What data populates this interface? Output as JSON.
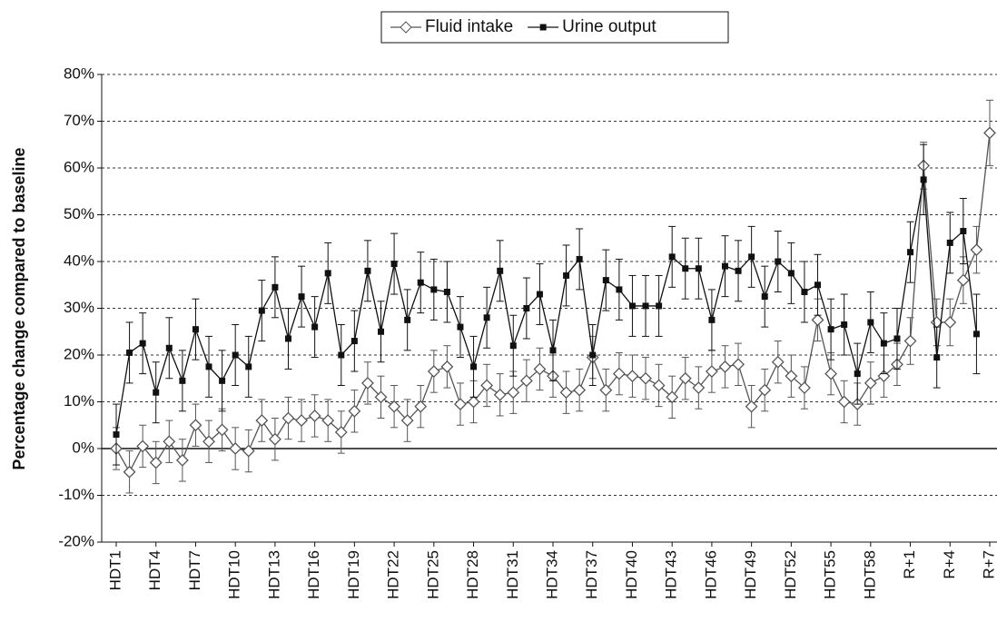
{
  "chart_data": {
    "type": "line",
    "y_label": "Percentage change compared to baseline",
    "categories": [
      "HDT1",
      null,
      null,
      "HDT4",
      null,
      null,
      "HDT7",
      null,
      null,
      "HDT10",
      null,
      null,
      "HDT13",
      null,
      null,
      "HDT16",
      null,
      null,
      "HDT19",
      null,
      null,
      "HDT22",
      null,
      null,
      "HDT25",
      null,
      null,
      "HDT28",
      null,
      null,
      "HDT31",
      null,
      null,
      "HDT34",
      null,
      null,
      "HDT37",
      null,
      null,
      "HDT40",
      null,
      null,
      "HDT43",
      null,
      null,
      "HDT46",
      null,
      null,
      "HDT49",
      null,
      null,
      "HDT52",
      null,
      null,
      "HDT55",
      null,
      null,
      "HDT58",
      null,
      null,
      "R+1",
      null,
      null,
      "R+4",
      null,
      null,
      "R+7"
    ],
    "series": [
      {
        "name": "Fluid intake",
        "color": "#555555",
        "marker": "diamond",
        "values": [
          0,
          -5,
          0.5,
          -3,
          1.5,
          -2.5,
          5,
          1.5,
          4,
          0,
          -0.5,
          6,
          2,
          6.5,
          6,
          7,
          6,
          3.5,
          8,
          14,
          11,
          9,
          6,
          9,
          16.5,
          17.5,
          9.5,
          10,
          13.5,
          11.5,
          12,
          14.5,
          17,
          15.5,
          12,
          12.5,
          19.5,
          12.5,
          16,
          15.5,
          15,
          13.5,
          11,
          15,
          13,
          16.5,
          17.5,
          18,
          9,
          12.5,
          18.5,
          15.5,
          13,
          27.5,
          16,
          10,
          9.5,
          14,
          15.5,
          18,
          23,
          60.5,
          27,
          27,
          36,
          42.5,
          67.5
        ],
        "errors": [
          4.5,
          4.5,
          4.5,
          4.5,
          4.5,
          4.5,
          4.5,
          4.5,
          4.5,
          4.5,
          4.5,
          4.5,
          4.5,
          4.5,
          4.5,
          4.5,
          4.5,
          4.5,
          4.5,
          4.5,
          4.5,
          4.5,
          4.5,
          4.5,
          4.5,
          4.5,
          4.5,
          4.5,
          4.5,
          4.5,
          4.5,
          4.5,
          4.5,
          4.5,
          4.5,
          4.5,
          4.5,
          4.5,
          4.5,
          4.5,
          4.5,
          4.5,
          4.5,
          4.5,
          4.5,
          4.5,
          4.5,
          4.5,
          4.5,
          4.5,
          4.5,
          4.5,
          4.5,
          4.5,
          4.5,
          4.5,
          4.5,
          4.5,
          4.5,
          4.5,
          5,
          5,
          5,
          5,
          5,
          5,
          7
        ]
      },
      {
        "name": "Urine output",
        "color": "#111111",
        "marker": "square",
        "values": [
          3,
          20.5,
          22.5,
          12,
          21.5,
          14.5,
          25.5,
          17.5,
          14.5,
          20,
          17.5,
          29.5,
          34.5,
          23.5,
          32.5,
          26,
          37.5,
          20,
          23,
          38,
          25,
          39.5,
          27.5,
          35.5,
          34,
          33.5,
          26,
          17.5,
          28,
          38,
          22,
          30,
          33,
          21,
          37,
          40.5,
          20,
          36,
          34,
          30.5,
          30.5,
          30.5,
          41,
          38.5,
          38.5,
          27.5,
          39,
          38,
          41,
          32.5,
          40,
          37.5,
          33.5,
          35,
          25.5,
          26.5,
          16,
          27,
          22.5,
          23.5,
          42,
          57.5,
          19.5,
          44,
          46.5,
          24.5,
          null
        ],
        "errors": [
          6.5,
          6.5,
          6.5,
          6.5,
          6.5,
          6.5,
          6.5,
          6.5,
          6.5,
          6.5,
          6.5,
          6.5,
          6.5,
          6.5,
          6.5,
          6.5,
          6.5,
          6.5,
          6.5,
          6.5,
          6.5,
          6.5,
          6.5,
          6.5,
          6.5,
          6.5,
          6.5,
          6.5,
          6.5,
          6.5,
          6.5,
          6.5,
          6.5,
          6.5,
          6.5,
          6.5,
          6.5,
          6.5,
          6.5,
          6.5,
          6.5,
          6.5,
          6.5,
          6.5,
          6.5,
          6.5,
          6.5,
          6.5,
          6.5,
          6.5,
          6.5,
          6.5,
          6.5,
          6.5,
          6.5,
          6.5,
          6.5,
          6.5,
          6.5,
          6.5,
          6.5,
          7.5,
          6.5,
          6.5,
          7,
          8.5,
          null
        ]
      }
    ],
    "ylim": [
      -20,
      80
    ],
    "yticks": [
      {
        "value": -20,
        "label": "-20%"
      },
      {
        "value": -10,
        "label": "-10%"
      },
      {
        "value": 0,
        "label": "0%"
      },
      {
        "value": 10,
        "label": "10%"
      },
      {
        "value": 20,
        "label": "20%"
      },
      {
        "value": 30,
        "label": "30%"
      },
      {
        "value": 40,
        "label": "40%"
      },
      {
        "value": 50,
        "label": "50%"
      },
      {
        "value": 60,
        "label": "60%"
      },
      {
        "value": 70,
        "label": "70%"
      },
      {
        "value": 80,
        "label": "80%"
      }
    ],
    "grid": true,
    "legend": "top"
  }
}
